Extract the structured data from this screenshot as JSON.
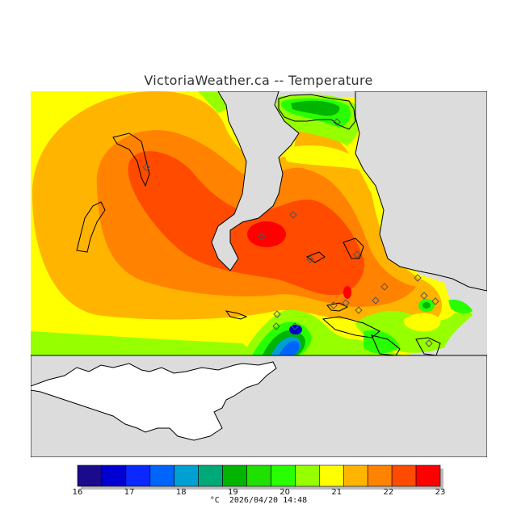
{
  "title": "VictoriaWeather.ca -- Temperature",
  "footer": {
    "unit": "°C",
    "timestamp": "2026/04/20 14:48"
  },
  "legend": {
    "ticks": [
      "16",
      "17",
      "18",
      "19",
      "20",
      "21",
      "22",
      "23"
    ],
    "colors": [
      "#1a0a8c",
      "#0000d2",
      "#0a28ff",
      "#0064ff",
      "#00a0d2",
      "#00aa78",
      "#00b400",
      "#1ee100",
      "#28ff00",
      "#96ff00",
      "#ffff00",
      "#ffb400",
      "#ff8200",
      "#ff4b00",
      "#ff0000"
    ]
  },
  "colors": {
    "land_gray": "#dcdcdc",
    "white_land": "#ffffff",
    "coast": "#000000"
  }
}
